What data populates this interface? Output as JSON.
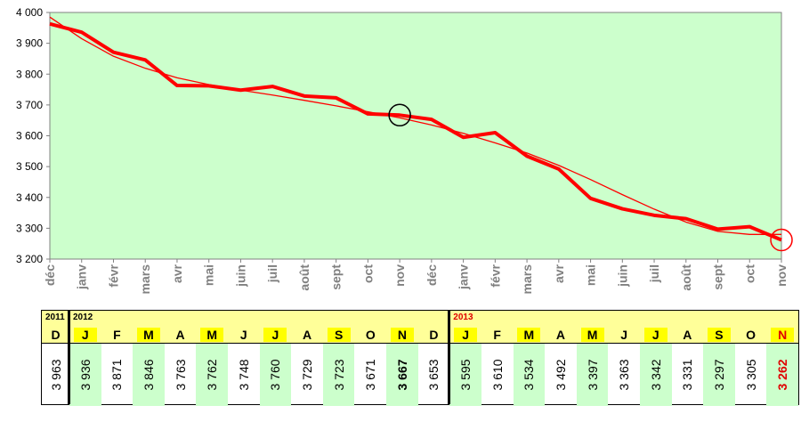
{
  "chart_data": {
    "type": "line",
    "x": [
      "déc",
      "janv",
      "févr",
      "mars",
      "avr",
      "mai",
      "juin",
      "juil",
      "août",
      "sept",
      "oct",
      "nov",
      "déc",
      "janv",
      "févr",
      "mars",
      "avr",
      "mai",
      "juin",
      "juil",
      "août",
      "sept",
      "oct",
      "nov"
    ],
    "series": [
      {
        "values": [
          3963,
          3936,
          3871,
          3846,
          3763,
          3762,
          3748,
          3760,
          3729,
          3723,
          3671,
          3667,
          3653,
          3595,
          3610,
          3534,
          3492,
          3397,
          3363,
          3342,
          3331,
          3297,
          3305,
          3262
        ],
        "color": "#ff0000",
        "style": "thick"
      },
      {
        "values": [
          3985,
          3915,
          3858,
          3819,
          3788,
          3766,
          3748,
          3732,
          3715,
          3697,
          3678,
          3658,
          3635,
          3608,
          3577,
          3544,
          3504,
          3458,
          3409,
          3362,
          3320,
          3290,
          3280,
          3280
        ],
        "color": "#ff0000",
        "style": "trend"
      }
    ],
    "ylim": [
      3200,
      4000
    ],
    "yticks": [
      3200,
      3300,
      3400,
      3500,
      3600,
      3700,
      3800,
      3900,
      4000
    ],
    "ytick_labels": [
      "3 200",
      "3 300",
      "3 400",
      "3 500",
      "3 600",
      "3 700",
      "3 800",
      "3 900",
      "4 000"
    ],
    "highlight_points": [
      11,
      23
    ],
    "highlight_colors": [
      "#000000",
      "#ff0000"
    ],
    "plot_bg": "#ccffcc"
  },
  "table": {
    "years": [
      {
        "label": "2011",
        "red": false
      },
      {
        "label": "2012",
        "red": false
      },
      {
        "label": "2013",
        "red": true
      }
    ],
    "months": [
      "D",
      "J",
      "F",
      "M",
      "A",
      "M",
      "J",
      "J",
      "A",
      "S",
      "O",
      "N",
      "D",
      "J",
      "F",
      "M",
      "A",
      "M",
      "J",
      "J",
      "A",
      "S",
      "O",
      "N"
    ],
    "highlight_months": [
      1,
      3,
      5,
      7,
      9,
      11,
      13,
      15,
      17,
      19,
      21,
      23
    ],
    "values": [
      "3 963",
      "3 936",
      "3 871",
      "3 846",
      "3 763",
      "3 762",
      "3 748",
      "3 760",
      "3 729",
      "3 723",
      "3 671",
      "3 667",
      "3 653",
      "3 595",
      "3 610",
      "3 534",
      "3 492",
      "3 397",
      "3 363",
      "3 342",
      "3 331",
      "3 297",
      "3 305",
      "3 262"
    ],
    "bold_index": 11,
    "red_index": 23,
    "colors": {
      "header_bg": "#ffff99",
      "month_hl": "#ffff00",
      "tint": "#ccffcc",
      "red": "#e00000"
    }
  }
}
